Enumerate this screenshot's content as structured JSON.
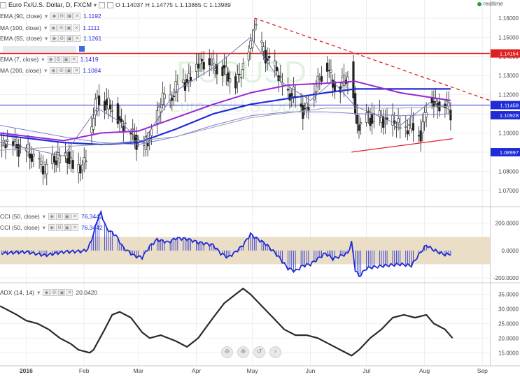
{
  "header": {
    "symbol": "Euro Fx/U.S. Dollar, D, FXCM",
    "open_label": "O",
    "open": "1.14037",
    "high_label": "H",
    "high": "1.14775",
    "low_label": "L",
    "low": "1.13865",
    "close_label": "C",
    "close": "1.13989",
    "realtime": "realtime",
    "watermark_pair": "EURUSD",
    "watermark_name": "Euro Fx/U.S. Dollar"
  },
  "indicators": [
    {
      "label": "EMA (90, close)",
      "value": "1.1192",
      "color": "#1f2bd6"
    },
    {
      "label": "MA (100, close)",
      "value": "1.1111",
      "color": "#1f2bd6"
    },
    {
      "label": "EMA (55, close)",
      "value": "1.1261",
      "color": "#1f2bd6"
    },
    {
      "label": "",
      "value": "",
      "color": "#1f2bd6"
    },
    {
      "label": "EMA (7, close)",
      "value": "1.1419",
      "color": "#1f2bd6"
    },
    {
      "label": "MA (200, close)",
      "value": "1.1084",
      "color": "#1f2bd6"
    }
  ],
  "cci_legend": [
    {
      "label": "CCI (50, close)",
      "value": "76.3442"
    },
    {
      "label": "CCI (50, close)",
      "value": "76.3442"
    }
  ],
  "adx_legend": {
    "label": "ADX (14, 14)",
    "value": "20.0420"
  },
  "icons": [
    "chart-type-icon",
    "dropdown-icon",
    "eye-icon",
    "settings-icon",
    "source-icon",
    "close-icon",
    "realtime-dot-icon",
    "zoom-out-icon",
    "zoom-in-icon",
    "reset-icon",
    "scroll-right-icon"
  ],
  "colors": {
    "candle": "#222222",
    "ema90": "#1f2bd6",
    "ma100": "#7a7fd6",
    "ema55": "#9a26d6",
    "ema7": "#6e6eb4",
    "ma200": "#9aa0a6",
    "resistance": "#e02020",
    "cci": "#1f2bd6",
    "cci_band": "#e8d8bc",
    "adx": "#2a2a2a"
  },
  "nav_buttons": [
    "⊖",
    "⊕",
    "↺",
    "›"
  ],
  "chart_data": [
    {
      "type": "candlestick",
      "title": "Euro Fx/U.S. Dollar, D, FXCM",
      "ylim": [
        1.063,
        1.168
      ],
      "y_ticks": [
        "1.16000",
        "1.15000",
        "1.14000",
        "1.13000",
        "1.12000",
        "1.11000",
        "1.10000",
        "1.09000",
        "1.08000",
        "1.07000"
      ],
      "y_tick_values": [
        1.16,
        1.15,
        1.14,
        1.13,
        1.12,
        1.11,
        1.1,
        1.09,
        1.08,
        1.07
      ],
      "x_labels": [
        "2016",
        "Feb",
        "Mar",
        "Apr",
        "May",
        "Jun",
        "Jul",
        "Aug",
        "Sep"
      ],
      "x_label_days": [
        0,
        31,
        60,
        91,
        121,
        152,
        182,
        213,
        244
      ],
      "x_range_days": [
        -14,
        248
      ],
      "price_path": [
        [
          -14,
          1.094
        ],
        [
          -8,
          1.096
        ],
        [
          0,
          1.09
        ],
        [
          6,
          1.086
        ],
        [
          10,
          1.078
        ],
        [
          14,
          1.087
        ],
        [
          18,
          1.085
        ],
        [
          22,
          1.089
        ],
        [
          26,
          1.08
        ],
        [
          30,
          1.083
        ],
        [
          33,
          1.094
        ],
        [
          36,
          1.108
        ],
        [
          38,
          1.118
        ],
        [
          40,
          1.12
        ],
        [
          43,
          1.114
        ],
        [
          46,
          1.112
        ],
        [
          48,
          1.114
        ],
        [
          50,
          1.106
        ],
        [
          54,
          1.102
        ],
        [
          57,
          1.1
        ],
        [
          60,
          1.094
        ],
        [
          63,
          1.092
        ],
        [
          66,
          1.098
        ],
        [
          70,
          1.108
        ],
        [
          73,
          1.118
        ],
        [
          76,
          1.117
        ],
        [
          80,
          1.122
        ],
        [
          84,
          1.127
        ],
        [
          88,
          1.129
        ],
        [
          92,
          1.137
        ],
        [
          96,
          1.139
        ],
        [
          100,
          1.134
        ],
        [
          104,
          1.136
        ],
        [
          108,
          1.128
        ],
        [
          112,
          1.128
        ],
        [
          116,
          1.133
        ],
        [
          120,
          1.146
        ],
        [
          122,
          1.158
        ],
        [
          125,
          1.146
        ],
        [
          128,
          1.14
        ],
        [
          132,
          1.136
        ],
        [
          136,
          1.126
        ],
        [
          140,
          1.121
        ],
        [
          144,
          1.118
        ],
        [
          148,
          1.113
        ],
        [
          152,
          1.114
        ],
        [
          156,
          1.128
        ],
        [
          160,
          1.136
        ],
        [
          164,
          1.126
        ],
        [
          168,
          1.125
        ],
        [
          172,
          1.128
        ],
        [
          174,
          1.136
        ],
        [
          176,
          1.108
        ],
        [
          179,
          1.101
        ],
        [
          182,
          1.11
        ],
        [
          186,
          1.107
        ],
        [
          190,
          1.107
        ],
        [
          194,
          1.106
        ],
        [
          198,
          1.104
        ],
        [
          202,
          1.102
        ],
        [
          206,
          1.104
        ],
        [
          208,
          1.099
        ],
        [
          211,
          1.101
        ],
        [
          214,
          1.113
        ],
        [
          216,
          1.118
        ],
        [
          218,
          1.116
        ],
        [
          222,
          1.116
        ],
        [
          225,
          1.114
        ],
        [
          227,
          1.11
        ]
      ],
      "series": [
        {
          "name": "EMA (90, close)",
          "values": [
            [
              -14,
              1.099
            ],
            [
              20,
              1.095
            ],
            [
              40,
              1.094
            ],
            [
              60,
              1.095
            ],
            [
              80,
              1.102
            ],
            [
              100,
              1.11
            ],
            [
              120,
              1.115
            ],
            [
              140,
              1.118
            ],
            [
              160,
              1.121
            ],
            [
              176,
              1.123
            ],
            [
              200,
              1.123
            ],
            [
              227,
              1.123
            ]
          ]
        },
        {
          "name": "MA (100, close)",
          "values": [
            [
              -14,
              1.104
            ],
            [
              20,
              1.098
            ],
            [
              40,
              1.095
            ],
            [
              60,
              1.094
            ],
            [
              80,
              1.098
            ],
            [
              100,
              1.104
            ],
            [
              120,
              1.109
            ],
            [
              140,
              1.111
            ],
            [
              160,
              1.111
            ],
            [
              180,
              1.11
            ],
            [
              200,
              1.109
            ],
            [
              227,
              1.11
            ]
          ]
        },
        {
          "name": "EMA (55, close)",
          "values": [
            [
              -14,
              1.1
            ],
            [
              20,
              1.096
            ],
            [
              40,
              1.1
            ],
            [
              60,
              1.101
            ],
            [
              80,
              1.108
            ],
            [
              100,
              1.115
            ],
            [
              120,
              1.121
            ],
            [
              140,
              1.125
            ],
            [
              160,
              1.126
            ],
            [
              176,
              1.127
            ],
            [
              200,
              1.121
            ],
            [
              227,
              1.117
            ]
          ]
        },
        {
          "name": "EMA (7, close)",
          "values": [
            [
              -14,
              1.095
            ],
            [
              20,
              1.088
            ],
            [
              38,
              1.113
            ],
            [
              50,
              1.106
            ],
            [
              62,
              1.095
            ],
            [
              80,
              1.122
            ],
            [
              100,
              1.134
            ],
            [
              120,
              1.15
            ],
            [
              136,
              1.127
            ],
            [
              152,
              1.117
            ],
            [
              164,
              1.127
            ],
            [
              176,
              1.114
            ],
            [
              200,
              1.104
            ],
            [
              216,
              1.116
            ],
            [
              227,
              1.112
            ]
          ]
        },
        {
          "name": "MA (200, close)",
          "values": [
            [
              -14,
              1.091
            ],
            [
              40,
              1.094
            ],
            [
              80,
              1.098
            ],
            [
              120,
              1.108
            ],
            [
              160,
              1.113
            ],
            [
              200,
              1.113
            ],
            [
              227,
              1.114
            ]
          ]
        }
      ],
      "levels": [
        {
          "label": "1.14154",
          "value": 1.14154,
          "color": "#e02020"
        },
        {
          "label": "1.11458",
          "value": 1.11458,
          "color": "#1f2bd6"
        },
        {
          "label": "1.10928",
          "value": 1.10928,
          "color": "#1f2bd6"
        },
        {
          "label": "1.08997",
          "value": 1.08997,
          "color": "#1f2bd6"
        }
      ],
      "trendlines": [
        {
          "style": "dashed",
          "color": "#e02020",
          "points": [
            [
              122,
              1.16
            ],
            [
              248,
              1.117
            ]
          ]
        },
        {
          "style": "solid",
          "color": "#e02020",
          "points": [
            [
              174,
              1.09
            ],
            [
              228,
              1.097
            ]
          ]
        }
      ]
    },
    {
      "type": "histogram-line",
      "title": "CCI (50, close)",
      "ylim": [
        -220,
        290
      ],
      "y_ticks": [
        "200.0000",
        "0.0000",
        "-200.0000"
      ],
      "y_tick_values": [
        200,
        0,
        -200
      ],
      "band": [
        -100,
        100
      ],
      "values": [
        [
          -14,
          -20
        ],
        [
          0,
          -10
        ],
        [
          10,
          -35
        ],
        [
          20,
          -10
        ],
        [
          30,
          -5
        ],
        [
          33,
          10
        ],
        [
          36,
          120
        ],
        [
          38,
          225
        ],
        [
          40,
          275
        ],
        [
          43,
          160
        ],
        [
          48,
          110
        ],
        [
          52,
          20
        ],
        [
          58,
          -40
        ],
        [
          62,
          -50
        ],
        [
          66,
          30
        ],
        [
          70,
          80
        ],
        [
          76,
          60
        ],
        [
          80,
          90
        ],
        [
          86,
          85
        ],
        [
          92,
          60
        ],
        [
          100,
          40
        ],
        [
          104,
          -20
        ],
        [
          108,
          -50
        ],
        [
          112,
          -10
        ],
        [
          116,
          40
        ],
        [
          120,
          120
        ],
        [
          123,
          90
        ],
        [
          128,
          50
        ],
        [
          134,
          -30
        ],
        [
          140,
          -130
        ],
        [
          144,
          -150
        ],
        [
          148,
          -110
        ],
        [
          152,
          -100
        ],
        [
          156,
          -60
        ],
        [
          160,
          -20
        ],
        [
          164,
          -60
        ],
        [
          168,
          -40
        ],
        [
          172,
          -20
        ],
        [
          174,
          60
        ],
        [
          176,
          -140
        ],
        [
          178,
          -190
        ],
        [
          182,
          -130
        ],
        [
          186,
          -120
        ],
        [
          192,
          -110
        ],
        [
          200,
          -100
        ],
        [
          206,
          -110
        ],
        [
          210,
          -30
        ],
        [
          214,
          40
        ],
        [
          216,
          20
        ],
        [
          220,
          -10
        ],
        [
          224,
          -30
        ],
        [
          227,
          -25
        ]
      ]
    },
    {
      "type": "line",
      "title": "ADX (14, 14)",
      "ylim": [
        11,
        38
      ],
      "y_ticks": [
        "35.0000",
        "30.0000",
        "25.0000",
        "20.0000",
        "15.0000"
      ],
      "y_tick_values": [
        35,
        30,
        25,
        20,
        15
      ],
      "values": [
        [
          -14,
          31
        ],
        [
          -5,
          28
        ],
        [
          0,
          26
        ],
        [
          6,
          25
        ],
        [
          12,
          23
        ],
        [
          18,
          20
        ],
        [
          24,
          18
        ],
        [
          28,
          16
        ],
        [
          34,
          15
        ],
        [
          36,
          16
        ],
        [
          42,
          23
        ],
        [
          46,
          28
        ],
        [
          50,
          29
        ],
        [
          56,
          27
        ],
        [
          62,
          22
        ],
        [
          66,
          20
        ],
        [
          72,
          21
        ],
        [
          80,
          19
        ],
        [
          86,
          17
        ],
        [
          92,
          20
        ],
        [
          100,
          27
        ],
        [
          106,
          32
        ],
        [
          112,
          35
        ],
        [
          116,
          37
        ],
        [
          120,
          35
        ],
        [
          126,
          31
        ],
        [
          132,
          27
        ],
        [
          138,
          23
        ],
        [
          144,
          21
        ],
        [
          150,
          21
        ],
        [
          156,
          20
        ],
        [
          162,
          18
        ],
        [
          168,
          16
        ],
        [
          174,
          14
        ],
        [
          178,
          16
        ],
        [
          184,
          20
        ],
        [
          190,
          23
        ],
        [
          196,
          27
        ],
        [
          202,
          28
        ],
        [
          208,
          27
        ],
        [
          214,
          28
        ],
        [
          218,
          25
        ],
        [
          224,
          23
        ],
        [
          228,
          20
        ]
      ]
    }
  ]
}
